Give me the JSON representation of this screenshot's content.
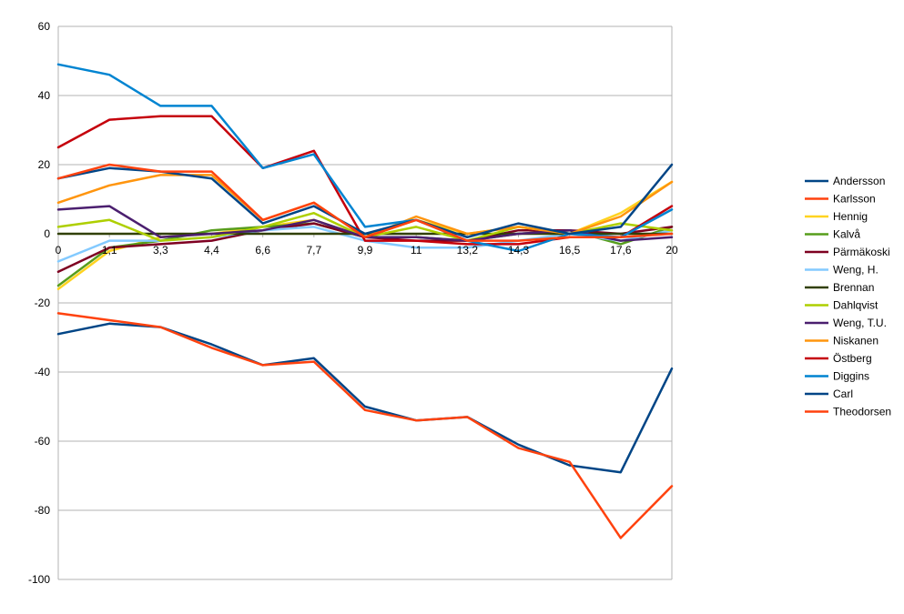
{
  "chart_data": {
    "type": "line",
    "title": "",
    "xlabel": "",
    "ylabel": "",
    "x": [
      "0",
      "1,1",
      "3,3",
      "4,4",
      "6,6",
      "7,7",
      "9,9",
      "11",
      "13,2",
      "14,3",
      "16,5",
      "17,6",
      "20"
    ],
    "ylim": [
      -100,
      60
    ],
    "y_ticks": [
      "60",
      "40",
      "20",
      "0",
      "-20",
      "-40",
      "-60",
      "-80",
      "-100"
    ],
    "grid": true,
    "legend_position": "right",
    "series": [
      {
        "name": "Andersson",
        "color": "#004586",
        "values": [
          -29,
          -26,
          -27,
          -32,
          -38,
          -36,
          -50,
          -54,
          -53,
          -61,
          -67,
          -69,
          -39
        ]
      },
      {
        "name": "Karlsson",
        "color": "#ff420e",
        "values": [
          -23,
          -25,
          -27,
          -33,
          -38,
          -37,
          -51,
          -54,
          -53,
          -62,
          -66,
          -88,
          -73
        ]
      },
      {
        "name": "Hennig",
        "color": "#ffd320",
        "values": [
          -16,
          -5,
          -1,
          0,
          2,
          4,
          -1,
          4,
          0,
          2,
          0,
          6,
          15
        ]
      },
      {
        "name": "Kalvå",
        "color": "#579d1c",
        "values": [
          -15,
          -4,
          -2,
          1,
          2,
          3,
          -1,
          -1,
          -2,
          0,
          1,
          -3,
          2
        ]
      },
      {
        "name": "Pärmäkoski",
        "color": "#7e0021",
        "values": [
          -11,
          -4,
          -3,
          -2,
          1,
          3,
          -1,
          -2,
          -2,
          1,
          1,
          0,
          2
        ]
      },
      {
        "name": "Weng, H.",
        "color": "#83caff",
        "values": [
          -8,
          -2,
          -2,
          -1,
          1,
          2,
          -2,
          -4,
          -4,
          -2,
          0,
          -2,
          1
        ]
      },
      {
        "name": "Brennan",
        "color": "#314004",
        "values": [
          0,
          0,
          0,
          0,
          0,
          0,
          0,
          0,
          0,
          0,
          0,
          0,
          0
        ]
      },
      {
        "name": "Dahlqvist",
        "color": "#aecf00",
        "values": [
          2,
          4,
          -2,
          -1,
          2,
          6,
          -1,
          2,
          -2,
          2,
          0,
          3,
          1
        ]
      },
      {
        "name": "Weng, T.U.",
        "color": "#4b1f6f",
        "values": [
          7,
          8,
          -1,
          0,
          1,
          4,
          -1,
          -1,
          -2,
          0,
          1,
          -2,
          -1
        ]
      },
      {
        "name": "Niskanen",
        "color": "#ff950e",
        "values": [
          9,
          14,
          17,
          17,
          4,
          9,
          -1,
          5,
          0,
          2,
          0,
          5,
          15
        ]
      },
      {
        "name": "Östberg",
        "color": "#c5000b",
        "values": [
          25,
          33,
          34,
          34,
          19,
          24,
          -2,
          -2,
          -3,
          -3,
          -1,
          -1,
          8
        ]
      },
      {
        "name": "Diggins",
        "color": "#0084d1",
        "values": [
          49,
          46,
          37,
          37,
          19,
          23,
          2,
          4,
          -2,
          -5,
          0,
          -1,
          7
        ]
      },
      {
        "name": "Carl",
        "color": "#004586",
        "values": [
          16,
          19,
          18,
          16,
          3,
          8,
          0,
          4,
          -1,
          3,
          0,
          2,
          20
        ]
      },
      {
        "name": "Theodorsen",
        "color": "#ff420e",
        "values": [
          16,
          20,
          18,
          18,
          4,
          9,
          -1,
          4,
          -2,
          -2,
          -1,
          -1,
          0
        ]
      }
    ]
  }
}
